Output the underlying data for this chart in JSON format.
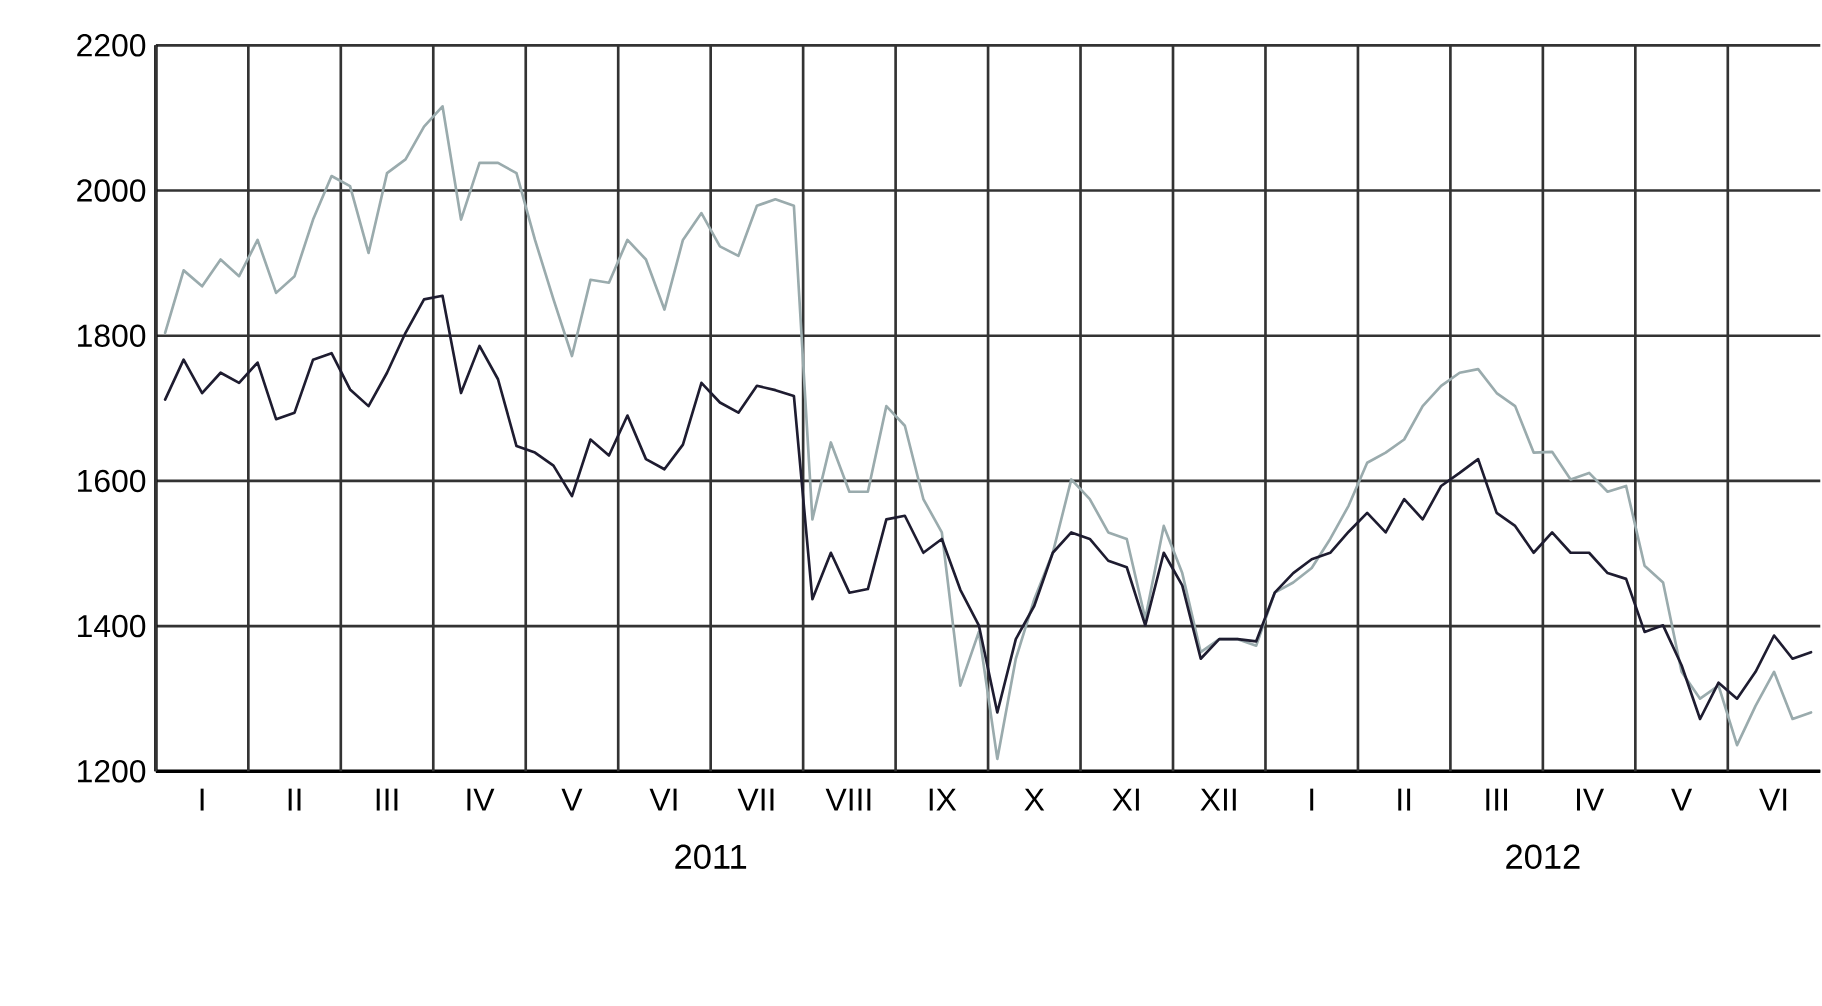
{
  "chart_data": {
    "type": "line",
    "categories": [
      null,
      null,
      "I",
      null,
      null,
      null,
      null,
      "II",
      null,
      null,
      null,
      null,
      "III",
      null,
      null,
      null,
      null,
      "IV",
      null,
      null,
      null,
      null,
      "V",
      null,
      null,
      null,
      null,
      "VI",
      null,
      null,
      null,
      null,
      "VII",
      null,
      null,
      null,
      null,
      "VIII",
      null,
      null,
      null,
      null,
      "IX",
      null,
      null,
      null,
      null,
      "X",
      null,
      null,
      null,
      null,
      "XI",
      null,
      null,
      null,
      null,
      "XII",
      null,
      null,
      null,
      null,
      "I",
      null,
      null,
      null,
      null,
      "II",
      null,
      null,
      null,
      null,
      "III",
      null,
      null,
      null,
      null,
      "IV",
      null,
      null,
      null,
      null,
      "V",
      null,
      null,
      null,
      null,
      "VI",
      null,
      null
    ],
    "ylim": [
      1200,
      2200
    ],
    "yticks": [
      1200,
      1400,
      1600,
      1800,
      2000,
      2200
    ],
    "grid": true,
    "annotations": [
      "2011",
      "2012"
    ],
    "series": [
      {
        "color": "#9aabad",
        "values": [
          1804,
          1890,
          1868,
          1905,
          1882,
          1932,
          1859,
          1882,
          1960,
          2020,
          2006,
          1914,
          2024,
          2043,
          2088,
          2116,
          1960,
          2038,
          2038,
          2024,
          1932,
          1850,
          1772,
          1877,
          1873,
          1932,
          1905,
          1836,
          1932,
          1969,
          1923,
          1910,
          1979,
          1988,
          1979,
          1547,
          1653,
          1585,
          1585,
          1703,
          1676,
          1575,
          1529,
          1318,
          1392,
          1217,
          1355,
          1437,
          1501,
          1602,
          1575,
          1529,
          1520,
          1410,
          1538,
          1473,
          1364,
          1382,
          1382,
          1373,
          1446,
          1460,
          1480,
          1520,
          1566,
          1625,
          1639,
          1657,
          1703,
          1731,
          1749,
          1754,
          1721,
          1703,
          1639,
          1640,
          1602,
          1611,
          1585,
          1593,
          1483,
          1460,
          1337,
          1300,
          1318,
          1236,
          1290,
          1337,
          1272,
          1281
        ]
      },
      {
        "color": "#1e1c30",
        "values": [
          1712,
          1767,
          1721,
          1749,
          1735,
          1763,
          1685,
          1694,
          1767,
          1776,
          1726,
          1703,
          1749,
          1804,
          1850,
          1855,
          1721,
          1786,
          1740,
          1648,
          1639,
          1621,
          1579,
          1657,
          1635,
          1690,
          1630,
          1616,
          1650,
          1735,
          1708,
          1694,
          1731,
          1725,
          1717,
          1437,
          1501,
          1446,
          1451,
          1547,
          1552,
          1501,
          1520,
          1450,
          1401,
          1281,
          1382,
          1428,
          1501,
          1529,
          1520,
          1490,
          1481,
          1401,
          1501,
          1456,
          1355,
          1382,
          1382,
          1379,
          1446,
          1473,
          1492,
          1501,
          1530,
          1556,
          1529,
          1575,
          1547,
          1593,
          1611,
          1630,
          1556,
          1538,
          1501,
          1529,
          1501,
          1501,
          1473,
          1465,
          1392,
          1401,
          1346,
          1272,
          1322,
          1300,
          1337,
          1387,
          1355,
          1364
        ]
      }
    ]
  }
}
